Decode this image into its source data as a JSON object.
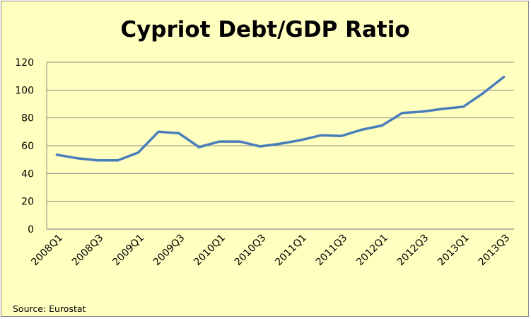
{
  "chart_data": {
    "type": "line",
    "title": "Cypriot Debt/GDP Ratio",
    "xlabel": "",
    "ylabel": "",
    "ylim": [
      0,
      120
    ],
    "yticks": [
      0,
      20,
      40,
      60,
      80,
      100,
      120
    ],
    "grid": true,
    "legend": "none",
    "x": [
      "2008Q1",
      "2008Q2",
      "2008Q3",
      "2008Q4",
      "2009Q1",
      "2009Q2",
      "2009Q3",
      "2009Q4",
      "2010Q1",
      "2010Q2",
      "2010Q3",
      "2010Q4",
      "2011Q1",
      "2011Q2",
      "2011Q3",
      "2011Q4",
      "2012Q1",
      "2012Q2",
      "2012Q3",
      "2012Q4",
      "2013Q1",
      "2013Q2",
      "2013Q3"
    ],
    "x_tick_labels": [
      "2008Q1",
      "2008Q3",
      "2009Q1",
      "2009Q3",
      "2010Q1",
      "2010Q3",
      "2011Q1",
      "2011Q3",
      "2012Q1",
      "2012Q3",
      "2013Q1",
      "2013Q3"
    ],
    "series": [
      {
        "name": "",
        "color": "#4A7EBB",
        "values": [
          53.5,
          51,
          49.5,
          49.5,
          55,
          70,
          69,
          59,
          63,
          63,
          59.5,
          61.5,
          64,
          67.5,
          67,
          71.5,
          74.5,
          83.5,
          84.5,
          86.5,
          88,
          98,
          109.5
        ]
      }
    ],
    "source": "Source: Eurostat"
  },
  "colors": {
    "background": "#FFFFC0",
    "grid": "#8C8C8C",
    "line": "#4A7EBB"
  }
}
